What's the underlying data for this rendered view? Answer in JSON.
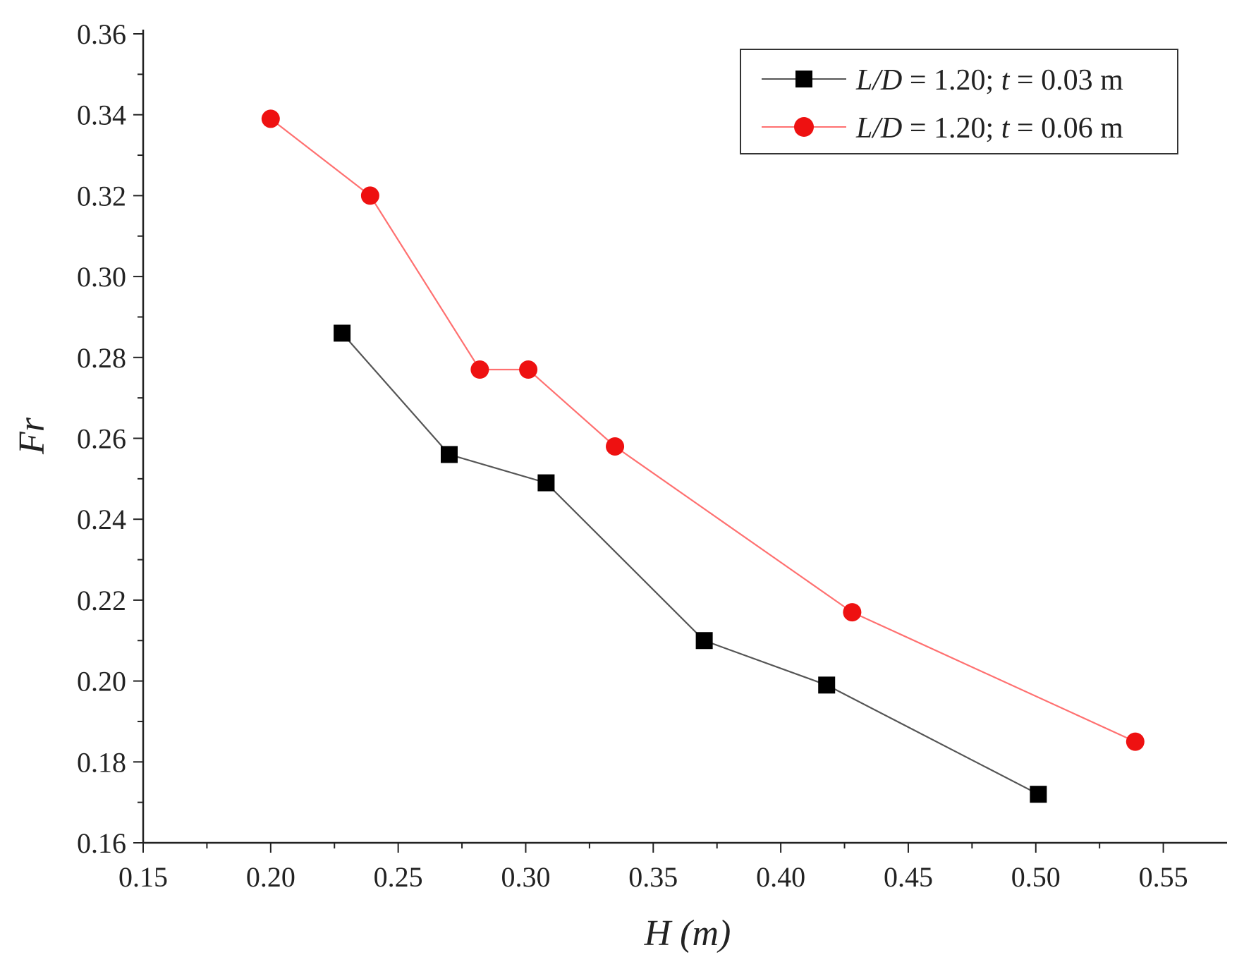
{
  "chart_data": {
    "type": "line",
    "title": "",
    "xlabel": "H (m)",
    "ylabel": "Fr",
    "xlim": [
      0.15,
      0.575
    ],
    "ylim": [
      0.16,
      0.36
    ],
    "x_ticks": [
      "0.15",
      "0.20",
      "0.25",
      "0.30",
      "0.35",
      "0.40",
      "0.45",
      "0.50",
      "0.55"
    ],
    "y_ticks": [
      "0.16",
      "0.18",
      "0.20",
      "0.22",
      "0.24",
      "0.26",
      "0.28",
      "0.30",
      "0.32",
      "0.34",
      "0.36"
    ],
    "grid": false,
    "legend_position": "top-right",
    "series": [
      {
        "name": "L/D = 1.20; t = 0.03 m",
        "legend": {
          "p1": "L/D",
          "p2": " = 1.20; ",
          "p3": "t",
          "p4": " = 0.03 m"
        },
        "color": "#555555",
        "marker": "square",
        "marker_color": "#000000",
        "x": [
          0.228,
          0.27,
          0.308,
          0.37,
          0.418,
          0.501
        ],
        "y": [
          0.286,
          0.256,
          0.249,
          0.21,
          0.199,
          0.172
        ]
      },
      {
        "name": "L/D = 1.20; t = 0.06 m",
        "legend": {
          "p1": "L/D",
          "p2": " = 1.20; ",
          "p3": "t",
          "p4": " = 0.06 m"
        },
        "color": "#ff7070",
        "marker": "circle",
        "marker_color": "#ee1111",
        "x": [
          0.2,
          0.239,
          0.282,
          0.301,
          0.335,
          0.428,
          0.539
        ],
        "y": [
          0.339,
          0.32,
          0.277,
          0.277,
          0.258,
          0.217,
          0.185
        ]
      }
    ]
  }
}
